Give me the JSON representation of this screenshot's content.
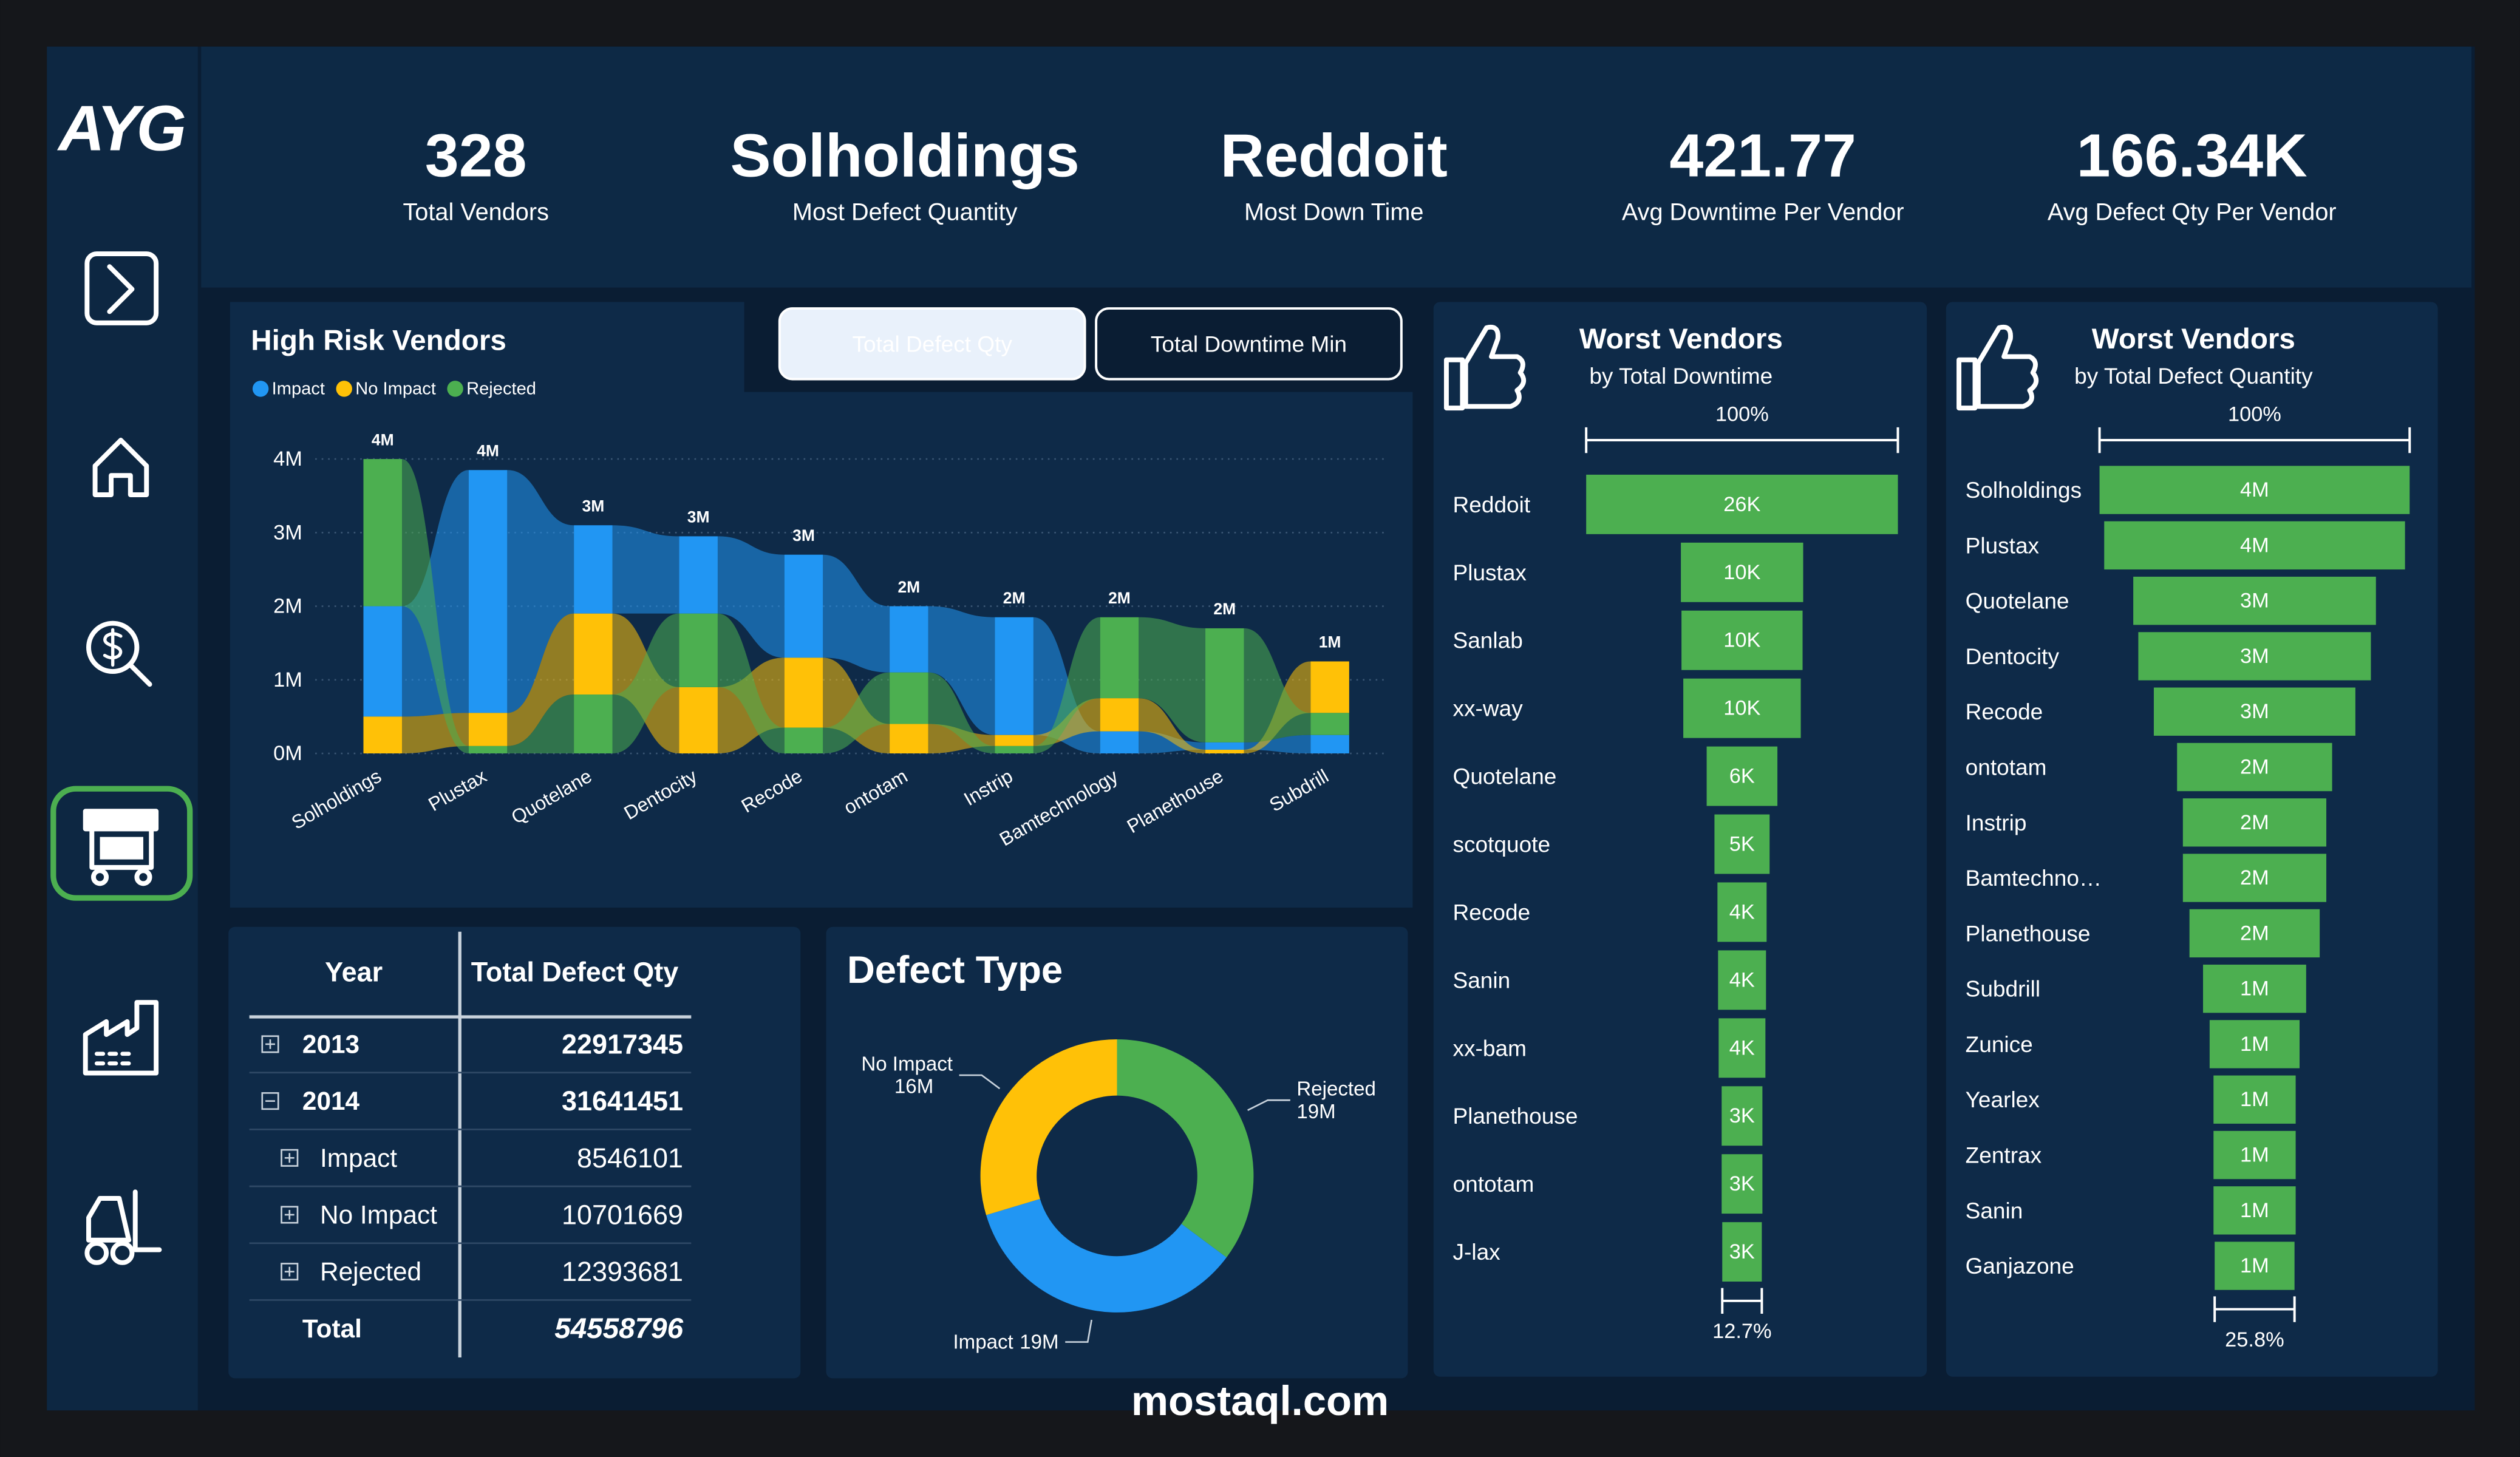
{
  "logo": "AYG",
  "kpis": [
    {
      "value": 328,
      "label": "Total Vendors"
    },
    {
      "value": "Solholdings",
      "label": "Most Defect Quantity"
    },
    {
      "value": "Reddoit",
      "label": "Most Down Time"
    },
    {
      "value": 421.77,
      "label": "Avg Downtime Per Vendor"
    },
    {
      "value": "166.34K",
      "label": "Avg Defect Qty Per Vendor"
    }
  ],
  "tabs": [
    "Total Defect Qty",
    "Total Downtime Min"
  ],
  "active_tab": 0,
  "table": {
    "headers": [
      "Year",
      "Total Defect Qty"
    ],
    "rows": [
      {
        "label": "2013",
        "value": 22917345,
        "level": 0,
        "expanded": false
      },
      {
        "label": "2014",
        "value": 31641451,
        "level": 0,
        "expanded": true
      },
      {
        "label": "Impact",
        "value": 8546101,
        "level": 1,
        "expanded": false
      },
      {
        "label": "No Impact",
        "value": 10701669,
        "level": 1,
        "expanded": false
      },
      {
        "label": "Rejected",
        "value": 12393681,
        "level": 1,
        "expanded": false
      }
    ],
    "total": {
      "label": "Total",
      "value": 54558796
    }
  },
  "chart_data": [
    {
      "type": "ribbon",
      "title": "High Risk Vendors",
      "categories": [
        "Solholdings",
        "Plustax",
        "Quotelane",
        "Dentocity",
        "Recode",
        "ontotam",
        "Instrip",
        "Bamtechnology",
        "Planethouse",
        "Subdrill"
      ],
      "series": [
        {
          "name": "Impact",
          "color": "#2196f3",
          "values": [
            1500000,
            3300000,
            1200000,
            1050000,
            1400000,
            900000,
            1600000,
            300000,
            100000,
            250000
          ]
        },
        {
          "name": "No Impact",
          "color": "#ffc107",
          "values": [
            500000,
            450000,
            1100000,
            900000,
            950000,
            400000,
            150000,
            450000,
            50000,
            700000
          ]
        },
        {
          "name": "Rejected",
          "color": "#4caf50",
          "values": [
            2000000,
            100000,
            800000,
            1000000,
            350000,
            700000,
            100000,
            1100000,
            1550000,
            300000
          ]
        }
      ],
      "total_labels": [
        "4M",
        "4M",
        "3M",
        "3M",
        "3M",
        "2M",
        "2M",
        "2M",
        "2M",
        "1M"
      ],
      "ylim": [
        0,
        4300000
      ],
      "yticks": [
        {
          "value": 0,
          "label": "0M"
        },
        {
          "value": 1000000,
          "label": "1M"
        },
        {
          "value": 2000000,
          "label": "2M"
        },
        {
          "value": 3000000,
          "label": "3M"
        },
        {
          "value": 4000000,
          "label": "4M"
        }
      ],
      "grid": true,
      "legend": "top-left"
    },
    {
      "type": "donut",
      "title": "Defect Type",
      "categories": [
        "Rejected",
        "Impact",
        "No Impact"
      ],
      "values": [
        19000000,
        19000000,
        16000000
      ],
      "value_labels": [
        "19M",
        "19M",
        "16M"
      ],
      "colors": [
        "#4caf50",
        "#2196f3",
        "#ffc107"
      ]
    },
    {
      "type": "funnel",
      "title": "Worst Vendors",
      "subtitle": "by Total Downtime",
      "categories": [
        "Reddoit",
        "Plustax",
        "Sanlab",
        "xx-way",
        "Quotelane",
        "scotquote",
        "Recode",
        "Sanin",
        "xx-bam",
        "Planethouse",
        "ontotam",
        "J-lax"
      ],
      "values": [
        26000,
        10200,
        10100,
        9800,
        5900,
        4600,
        4100,
        4000,
        3900,
        3400,
        3400,
        3300
      ],
      "value_labels": [
        "26K",
        "10K",
        "10K",
        "10K",
        "6K",
        "5K",
        "4K",
        "4K",
        "4K",
        "3K",
        "3K",
        "3K"
      ],
      "color": "#4caf50",
      "top_label": "100%",
      "bottom_label": "12.7%"
    },
    {
      "type": "funnel",
      "title": "Worst Vendors",
      "subtitle": "by Total Defect Quantity",
      "categories": [
        "Solholdings",
        "Plustax",
        "Quotelane",
        "Dentocity",
        "Recode",
        "ontotam",
        "Instrip",
        "Bamtechno…",
        "Planethouse",
        "Subdrill",
        "Zunice",
        "Yearlex",
        "Zentrax",
        "Sanin",
        "Ganjazone"
      ],
      "values": [
        4000000,
        3880000,
        3130000,
        3000000,
        2600000,
        2000000,
        1850000,
        1850000,
        1680000,
        1330000,
        1160000,
        1060000,
        1060000,
        1060000,
        1030000
      ],
      "value_labels": [
        "4M",
        "4M",
        "3M",
        "3M",
        "3M",
        "2M",
        "2M",
        "2M",
        "2M",
        "1M",
        "1M",
        "1M",
        "1M",
        "1M",
        "1M"
      ],
      "color": "#4caf50",
      "top_label": "100%",
      "bottom_label": "25.8%"
    }
  ],
  "watermark": "mostaql.com"
}
